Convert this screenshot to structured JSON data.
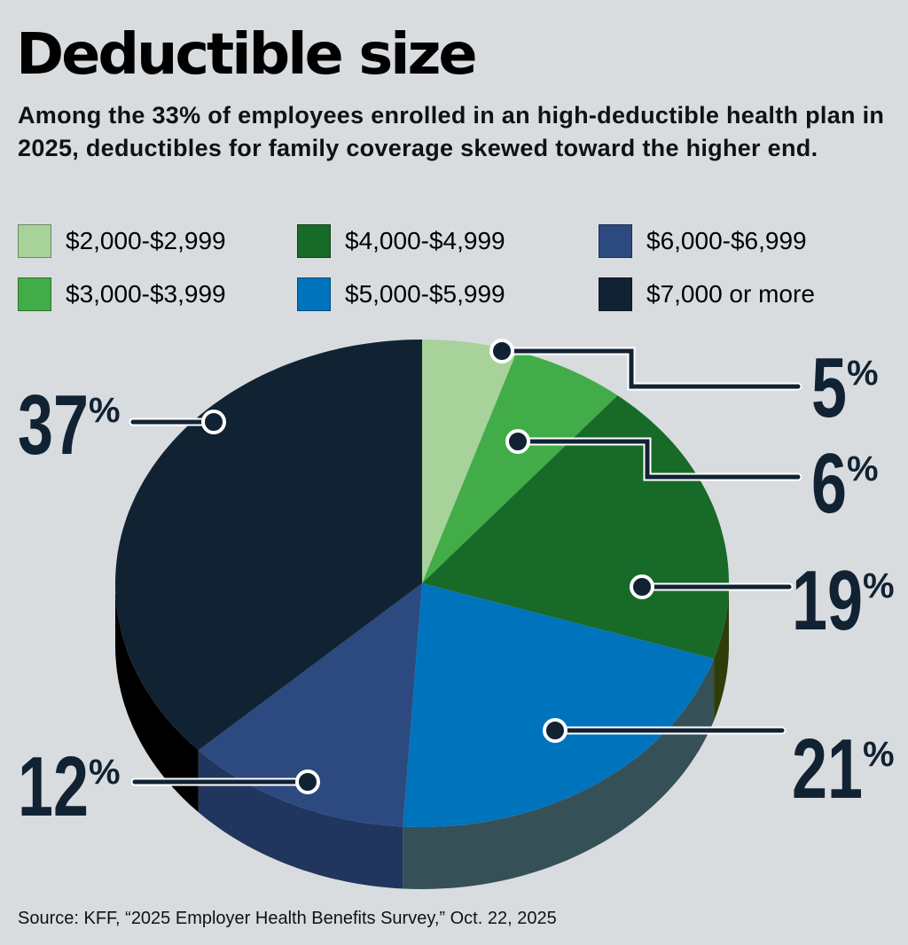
{
  "header": {
    "title": "Deductible size",
    "subtitle": "Among the 33% of employees enrolled in an high-deductible health plan in 2025, deductibles for family coverage skewed toward the higher end."
  },
  "legend": [
    {
      "label": "$2,000-$2,999",
      "color": "#a7d29a"
    },
    {
      "label": "$4,000-$4,999",
      "color": "#186a28"
    },
    {
      "label": "$6,000-$6,999",
      "color": "#2c4a80"
    },
    {
      "label": "$3,000-$3,999",
      "color": "#42ad48"
    },
    {
      "label": "$5,000-$5,999",
      "color": "#0073bd"
    },
    {
      "label": "$7,000 or more",
      "color": "#112233"
    }
  ],
  "chart_data": {
    "type": "pie",
    "style": "3d",
    "title": "Deductible size",
    "start": "12 o'clock",
    "direction": "clockwise",
    "slices": [
      {
        "label": "$2,000-$2,999",
        "value": 5,
        "display": "5%",
        "color": "#a7d29a",
        "side_color": "#6f9a66",
        "label_side": "right"
      },
      {
        "label": "$3,000-$3,999",
        "value": 6,
        "display": "6%",
        "color": "#42ad48",
        "side_color": "#2b7a30",
        "label_side": "right"
      },
      {
        "label": "$4,000-$4,999",
        "value": 19,
        "display": "19%",
        "color": "#186a28",
        "side_color": "#2e3d0a",
        "label_side": "right"
      },
      {
        "label": "$5,000-$5,999",
        "value": 21,
        "display": "21%",
        "color": "#0073bd",
        "side_color": "#355057",
        "label_side": "right"
      },
      {
        "label": "$6,000-$6,999",
        "value": 12,
        "display": "12%",
        "color": "#2c4a80",
        "side_color": "#20365e",
        "label_side": "left"
      },
      {
        "label": "$7,000 or more",
        "value": 37,
        "display": "37%",
        "color": "#112233",
        "side_color": "#000000",
        "label_side": "left"
      }
    ]
  },
  "footer": {
    "source": "Source: KFF, “2025 Employer Health Benefits Survey,” Oct. 22, 2025"
  }
}
